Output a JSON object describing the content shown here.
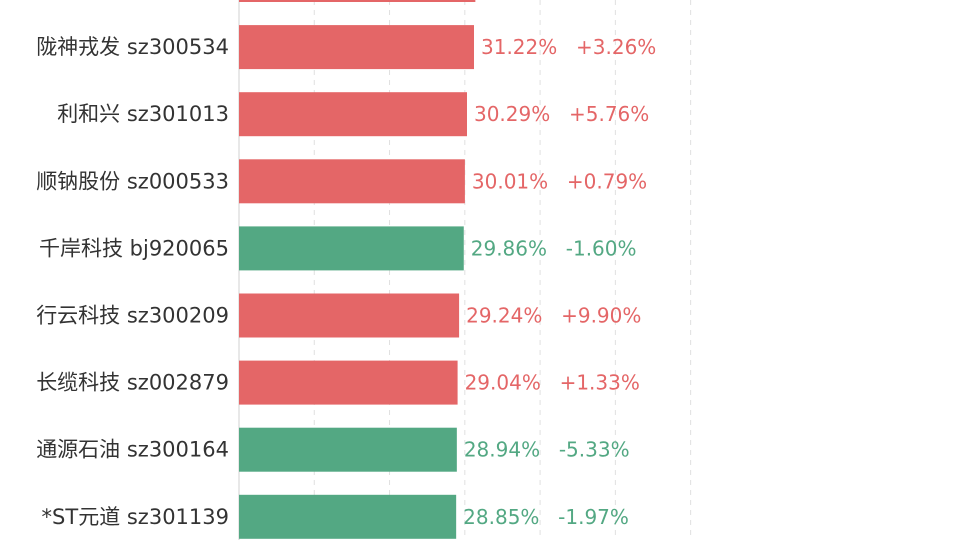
{
  "chart_data": {
    "type": "bar",
    "orientation": "horizontal",
    "grid": true,
    "xlim": [
      0,
      60
    ],
    "colors": {
      "up": "#e46667",
      "down": "#53a883",
      "grid": "#e0e0e0"
    },
    "categories": [
      {
        "name": "",
        "code": ""
      },
      {
        "name": "陇神戎发",
        "code": "sz300534"
      },
      {
        "name": "利和兴",
        "code": "sz301013"
      },
      {
        "name": "顺钠股份",
        "code": "sz000533"
      },
      {
        "name": "千岸科技",
        "code": "bj920065"
      },
      {
        "name": "行云科技",
        "code": "sz300209"
      },
      {
        "name": "长缆科技",
        "code": "sz002879"
      },
      {
        "name": "通源石油",
        "code": "sz300164"
      },
      {
        "name": "*ST元道",
        "code": "sz301139"
      }
    ],
    "values": [
      31.4,
      31.22,
      30.29,
      30.01,
      29.86,
      29.24,
      29.04,
      28.94,
      28.85
    ],
    "value_labels": [
      "",
      "31.22%",
      "30.29%",
      "30.01%",
      "29.86%",
      "29.24%",
      "29.04%",
      "28.94%",
      "28.85%"
    ],
    "change_labels": [
      "",
      "+3.26%",
      "+5.76%",
      "+0.79%",
      "-1.60%",
      "+9.90%",
      "+1.33%",
      "-5.33%",
      "-1.97%"
    ],
    "direction": [
      "up",
      "up",
      "up",
      "up",
      "down",
      "up",
      "up",
      "down",
      "down"
    ]
  }
}
